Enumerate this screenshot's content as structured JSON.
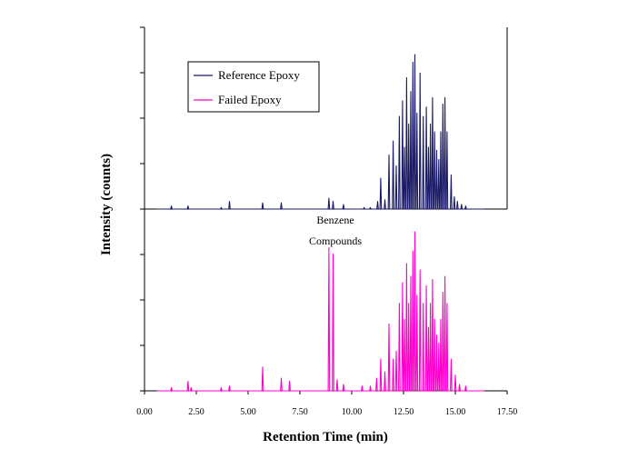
{
  "chart_data": {
    "type": "line",
    "title": "",
    "xlabel": "Retention Time (min)",
    "ylabel": "Intensity (counts)",
    "xlim": [
      0,
      17.5
    ],
    "x_ticks": [
      "0.00",
      "2.50",
      "5.00",
      "7.50",
      "10.00",
      "12.50",
      "15.00",
      "17.50"
    ],
    "y_major_ticks_per_panel": 4,
    "grid": false,
    "legend_position": "top-left",
    "annotation": {
      "lines": [
        "Benzene",
        "Compounds"
      ]
    },
    "series": [
      {
        "name": "Reference Epoxy",
        "color": "#1a1a66",
        "panel": "top",
        "peaks": [
          [
            1.3,
            0.02
          ],
          [
            2.1,
            0.02
          ],
          [
            3.7,
            0.01
          ],
          [
            4.1,
            0.05
          ],
          [
            5.7,
            0.04
          ],
          [
            6.6,
            0.04
          ],
          [
            8.9,
            0.07
          ],
          [
            9.1,
            0.05
          ],
          [
            9.6,
            0.03
          ],
          [
            10.6,
            0.01
          ],
          [
            10.9,
            0.01
          ],
          [
            11.25,
            0.05
          ],
          [
            11.4,
            0.2
          ],
          [
            11.6,
            0.06
          ],
          [
            11.8,
            0.35
          ],
          [
            12.0,
            0.44
          ],
          [
            12.15,
            0.28
          ],
          [
            12.3,
            0.6
          ],
          [
            12.45,
            0.7
          ],
          [
            12.55,
            0.4
          ],
          [
            12.65,
            0.85
          ],
          [
            12.75,
            0.55
          ],
          [
            12.85,
            0.76
          ],
          [
            12.95,
            0.95
          ],
          [
            13.05,
            1.0
          ],
          [
            13.15,
            0.62
          ],
          [
            13.3,
            0.88
          ],
          [
            13.45,
            0.6
          ],
          [
            13.6,
            0.66
          ],
          [
            13.7,
            0.4
          ],
          [
            13.8,
            0.55
          ],
          [
            13.9,
            0.72
          ],
          [
            14.0,
            0.5
          ],
          [
            14.1,
            0.38
          ],
          [
            14.2,
            0.32
          ],
          [
            14.3,
            0.5
          ],
          [
            14.4,
            0.68
          ],
          [
            14.5,
            0.72
          ],
          [
            14.6,
            0.5
          ],
          [
            14.8,
            0.22
          ],
          [
            14.95,
            0.08
          ],
          [
            15.1,
            0.05
          ],
          [
            15.3,
            0.03
          ],
          [
            15.5,
            0.02
          ]
        ]
      },
      {
        "name": "Failed Epoxy",
        "color": "#ff00cc",
        "panel": "bottom",
        "peaks": [
          [
            1.3,
            0.02
          ],
          [
            2.1,
            0.06
          ],
          [
            2.25,
            0.02
          ],
          [
            3.7,
            0.02
          ],
          [
            4.1,
            0.03
          ],
          [
            5.7,
            0.15
          ],
          [
            6.6,
            0.08
          ],
          [
            7.0,
            0.06
          ],
          [
            8.9,
            0.9
          ],
          [
            9.1,
            0.86
          ],
          [
            9.3,
            0.07
          ],
          [
            9.6,
            0.04
          ],
          [
            10.5,
            0.03
          ],
          [
            10.9,
            0.03
          ],
          [
            11.2,
            0.08
          ],
          [
            11.4,
            0.2
          ],
          [
            11.6,
            0.12
          ],
          [
            11.8,
            0.42
          ],
          [
            12.0,
            0.2
          ],
          [
            12.15,
            0.25
          ],
          [
            12.3,
            0.55
          ],
          [
            12.45,
            0.68
          ],
          [
            12.55,
            0.45
          ],
          [
            12.65,
            0.8
          ],
          [
            12.75,
            0.55
          ],
          [
            12.85,
            0.72
          ],
          [
            12.95,
            0.88
          ],
          [
            13.05,
            1.0
          ],
          [
            13.15,
            0.6
          ],
          [
            13.3,
            0.76
          ],
          [
            13.45,
            0.55
          ],
          [
            13.6,
            0.66
          ],
          [
            13.7,
            0.4
          ],
          [
            13.8,
            0.55
          ],
          [
            13.9,
            0.7
          ],
          [
            14.0,
            0.45
          ],
          [
            14.1,
            0.35
          ],
          [
            14.2,
            0.3
          ],
          [
            14.3,
            0.45
          ],
          [
            14.4,
            0.62
          ],
          [
            14.5,
            0.72
          ],
          [
            14.6,
            0.55
          ],
          [
            14.8,
            0.2
          ],
          [
            15.0,
            0.1
          ],
          [
            15.2,
            0.04
          ],
          [
            15.5,
            0.03
          ]
        ]
      }
    ]
  }
}
